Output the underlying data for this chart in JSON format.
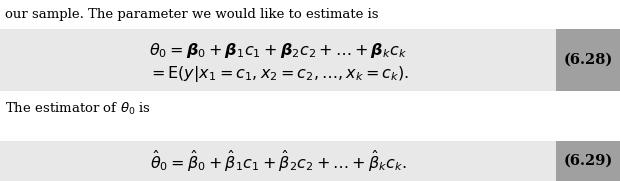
{
  "text_intro": "our sample. The parameter we would like to estimate is",
  "text_estimator": "The estimator of $\\theta_0$ is",
  "eq1_line1": "$\\theta_0 = \\boldsymbol{\\beta}_0 + \\boldsymbol{\\beta}_1 c_1 + \\boldsymbol{\\beta}_2 c_2 + \\ldots + \\boldsymbol{\\beta}_k c_k$",
  "eq1_line2": "$= \\mathrm{E}(y|x_1 = c_1, x_2 = c_2, \\ldots, x_k = c_k).$",
  "eq2": "$\\hat{\\theta}_0 = \\hat{\\beta}_0 + \\hat{\\beta}_1 c_1 + \\hat{\\beta}_2 c_2 + \\ldots + \\hat{\\beta}_k c_k.$",
  "label1": "(6.28)",
  "label2": "(6.29)",
  "bg_box_light": "#e8e8e8",
  "bg_box_dark": "#a0a0a0",
  "text_color": "#000000",
  "fig_bg": "#ffffff",
  "fontsize_text": 9.5,
  "fontsize_eq": 11.5,
  "fontsize_label": 10.5
}
